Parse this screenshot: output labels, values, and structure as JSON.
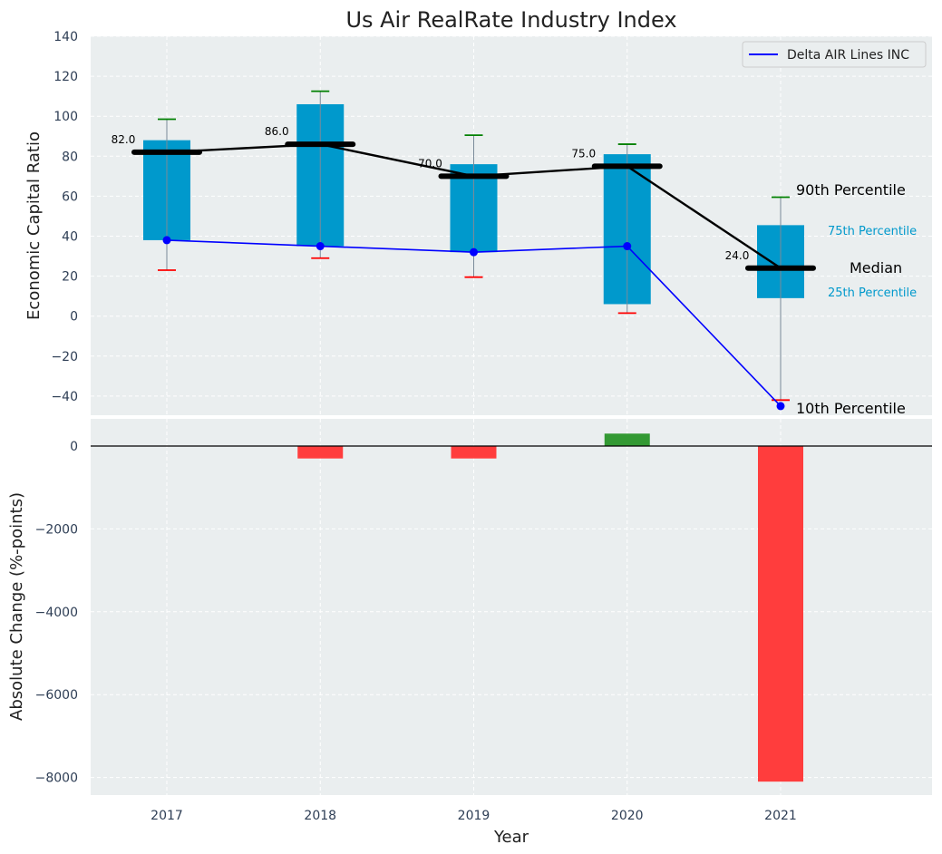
{
  "chart_data": [
    {
      "type": "box",
      "title": "Us Air RealRate Industry Index",
      "ylabel": "Economic Capital Ratio",
      "xlabel": "",
      "ylim": [
        -50,
        140
      ],
      "yticks": [
        140,
        120,
        100,
        80,
        60,
        40,
        20,
        0,
        -20,
        -40
      ],
      "ytick_labels": [
        "140",
        "120",
        "100",
        "80",
        "60",
        "40",
        "20",
        "0",
        "−20",
        "−40"
      ],
      "grid": true,
      "categories": [
        "2017",
        "2018",
        "2019",
        "2020",
        "2021"
      ],
      "boxes": [
        {
          "x": "2017",
          "p10": 23,
          "p25": 38,
          "median": 82,
          "p75": 88,
          "p90": 98.5,
          "median_label": "82.0"
        },
        {
          "x": "2018",
          "p10": 29,
          "p25": 35,
          "median": 86,
          "p75": 106,
          "p90": 112.5,
          "median_label": "86.0"
        },
        {
          "x": "2019",
          "p10": 19.5,
          "p25": 32,
          "median": 70,
          "p75": 76,
          "p90": 90.5,
          "median_label": "70.0"
        },
        {
          "x": "2020",
          "p10": 1.5,
          "p25": 6,
          "median": 75,
          "p75": 81,
          "p90": 86,
          "median_label": "75.0"
        },
        {
          "x": "2021",
          "p10": -42,
          "p25": 9,
          "median": 24,
          "p75": 45.5,
          "p90": 59.5,
          "median_label": "24.0"
        }
      ],
      "series": [
        {
          "name": "Delta AIR Lines INC",
          "color": "#0000ff",
          "values": [
            38,
            35,
            32,
            35,
            -45
          ]
        }
      ],
      "legend": {
        "position": "top-right"
      },
      "annotations": {
        "p90": "90th Percentile",
        "p75": "75th Percentile",
        "median": "Median",
        "p25": "25th Percentile",
        "p10": "10th Percentile"
      },
      "colors": {
        "box": "#0099cc",
        "median_line": "#000000",
        "whisker_top": "#008000",
        "whisker_bottom": "#ff0000",
        "background": "#eaeeef"
      }
    },
    {
      "type": "bar",
      "ylabel": "Absolute Change (%-points)",
      "xlabel": "Year",
      "ylim": [
        -8550,
        750
      ],
      "yticks": [
        0,
        -2000,
        -4000,
        -6000,
        -8000
      ],
      "ytick_labels": [
        "0",
        "−2000",
        "−4000",
        "−6000",
        "−8000"
      ],
      "grid": true,
      "categories": [
        "2017",
        "2018",
        "2019",
        "2020",
        "2021"
      ],
      "values": [
        0,
        -300,
        -300,
        300,
        -8100
      ],
      "colors": {
        "positive": "#339933",
        "negative": "#ff3d3d",
        "zero_line": "#000000"
      }
    }
  ]
}
